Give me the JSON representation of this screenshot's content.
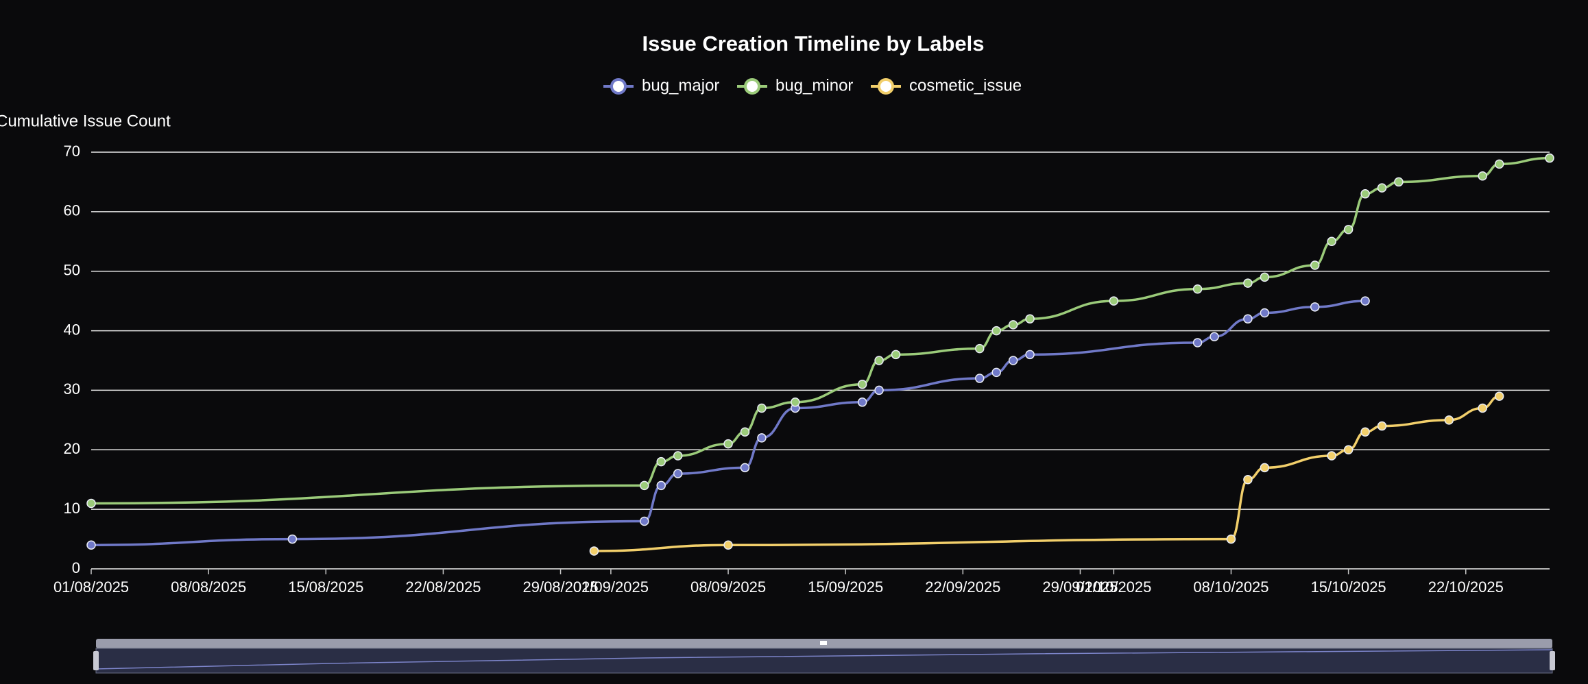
{
  "chart_data": {
    "type": "line",
    "title": "Issue Creation Timeline by Labels",
    "y_label": "Cumulative Issue Count",
    "grid": true,
    "smooth": true,
    "legend": "top",
    "xlim": [
      "2025-08-01",
      "2025-10-27"
    ],
    "ylim": [
      0,
      70
    ],
    "yticks": [
      0,
      10,
      20,
      30,
      40,
      50,
      60,
      70
    ],
    "xticks": [
      {
        "value": "2025-08-01",
        "label": "01/08/2025"
      },
      {
        "value": "2025-08-08",
        "label": "08/08/2025"
      },
      {
        "value": "2025-08-15",
        "label": "15/08/2025"
      },
      {
        "value": "2025-08-22",
        "label": "22/08/2025"
      },
      {
        "value": "2025-08-29",
        "label": "29/08/2025"
      },
      {
        "value": "2025-09-01",
        "label": "01/09/2025"
      },
      {
        "value": "2025-09-08",
        "label": "08/09/2025"
      },
      {
        "value": "2025-09-15",
        "label": "15/09/2025"
      },
      {
        "value": "2025-09-22",
        "label": "22/09/2025"
      },
      {
        "value": "2025-09-29",
        "label": "29/09/2025"
      },
      {
        "value": "2025-10-01",
        "label": "01/10/2025"
      },
      {
        "value": "2025-10-08",
        "label": "08/10/2025"
      },
      {
        "value": "2025-10-15",
        "label": "15/10/2025"
      },
      {
        "value": "2025-10-22",
        "label": "22/10/2025"
      }
    ],
    "series": [
      {
        "name": "bug_major",
        "color": "#7079c8",
        "x": [
          "2025-08-01",
          "2025-08-13",
          "2025-09-03",
          "2025-09-04",
          "2025-09-05",
          "2025-09-09",
          "2025-09-10",
          "2025-09-12",
          "2025-09-16",
          "2025-09-17",
          "2025-09-23",
          "2025-09-24",
          "2025-09-25",
          "2025-09-26",
          "2025-10-06",
          "2025-10-07",
          "2025-10-09",
          "2025-10-10",
          "2025-10-13",
          "2025-10-16"
        ],
        "values": [
          4,
          5,
          8,
          14,
          16,
          17,
          22,
          27,
          28,
          30,
          32,
          33,
          35,
          36,
          38,
          39,
          42,
          43,
          44,
          45
        ]
      },
      {
        "name": "bug_minor",
        "color": "#9bcb7a",
        "x": [
          "2025-08-01",
          "2025-09-03",
          "2025-09-04",
          "2025-09-05",
          "2025-09-08",
          "2025-09-09",
          "2025-09-10",
          "2025-09-12",
          "2025-09-16",
          "2025-09-17",
          "2025-09-18",
          "2025-09-23",
          "2025-09-24",
          "2025-09-25",
          "2025-09-26",
          "2025-10-01",
          "2025-10-06",
          "2025-10-09",
          "2025-10-10",
          "2025-10-13",
          "2025-10-14",
          "2025-10-15",
          "2025-10-16",
          "2025-10-17",
          "2025-10-18",
          "2025-10-23",
          "2025-10-24",
          "2025-10-27"
        ],
        "values": [
          11,
          14,
          18,
          19,
          21,
          23,
          27,
          28,
          31,
          35,
          36,
          37,
          40,
          41,
          42,
          45,
          47,
          48,
          49,
          51,
          55,
          57,
          63,
          64,
          65,
          66,
          68,
          69
        ]
      },
      {
        "name": "cosmetic_issue",
        "color": "#f2cf6b",
        "x": [
          "2025-08-31",
          "2025-09-08",
          "2025-10-08",
          "2025-10-09",
          "2025-10-10",
          "2025-10-14",
          "2025-10-15",
          "2025-10-16",
          "2025-10-17",
          "2025-10-21",
          "2025-10-23",
          "2025-10-24"
        ],
        "values": [
          3,
          4,
          5,
          15,
          17,
          19,
          20,
          23,
          24,
          25,
          27,
          29
        ]
      }
    ]
  }
}
